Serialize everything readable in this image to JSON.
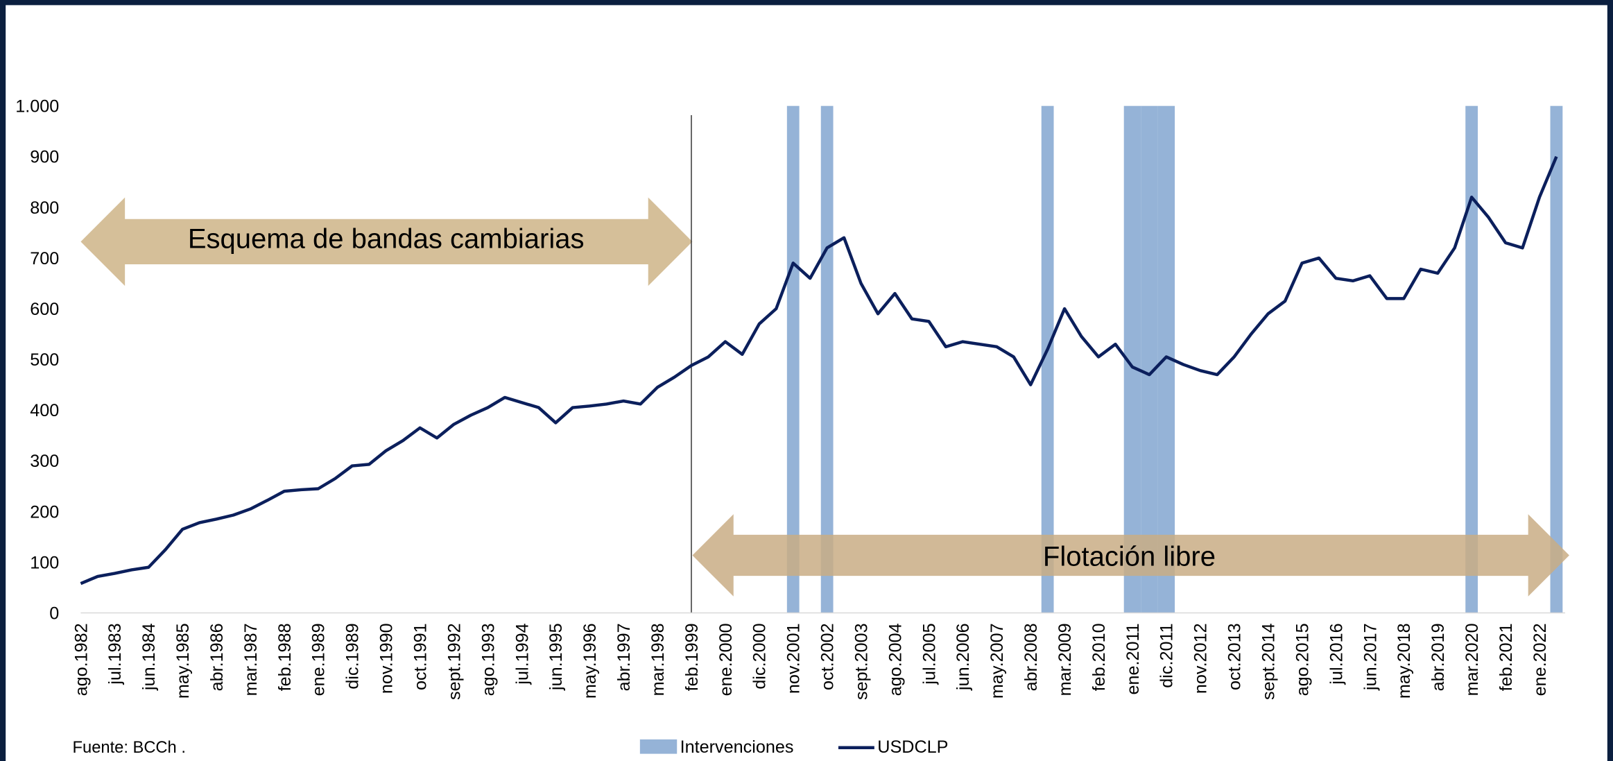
{
  "chart_data": {
    "type": "line",
    "categories": [
      "ago.1982",
      null,
      "jul.1983",
      null,
      "jun.1984",
      null,
      "may.1985",
      null,
      "abr.1986",
      null,
      "mar.1987",
      null,
      "feb.1988",
      null,
      "ene.1989",
      null,
      "dic.1989",
      null,
      "nov.1990",
      null,
      "oct.1991",
      null,
      "sept.1992",
      null,
      "ago.1993",
      null,
      "jul.1994",
      null,
      "jun.1995",
      null,
      "may.1996",
      null,
      "abr.1997",
      null,
      "mar.1998",
      null,
      "feb.1999",
      null,
      "ene.2000",
      null,
      "dic.2000",
      null,
      "nov.2001",
      null,
      "oct.2002",
      null,
      "sept.2003",
      null,
      "ago.2004",
      null,
      "jul.2005",
      null,
      "jun.2006",
      null,
      "may.2007",
      null,
      "abr.2008",
      null,
      "mar.2009",
      null,
      "feb.2010",
      null,
      "ene.2011",
      null,
      "dic.2011",
      null,
      "nov.2012",
      null,
      "oct.2013",
      null,
      "sept.2014",
      null,
      "ago.2015",
      null,
      "jul.2016",
      null,
      "jun.2017",
      null,
      "may.2018",
      null,
      "abr.2019",
      null,
      "mar.2020",
      null,
      "feb.2021",
      null,
      "ene.2022",
      null
    ],
    "series": [
      {
        "name": "Intervenciones",
        "type": "bar",
        "color": "#95b3d7",
        "values": [
          null,
          null,
          null,
          null,
          null,
          null,
          null,
          null,
          null,
          null,
          null,
          null,
          null,
          null,
          null,
          null,
          null,
          null,
          null,
          null,
          null,
          null,
          null,
          null,
          null,
          null,
          null,
          null,
          null,
          null,
          null,
          null,
          null,
          null,
          null,
          null,
          null,
          null,
          null,
          null,
          null,
          null,
          1000,
          null,
          1000,
          null,
          null,
          null,
          null,
          null,
          null,
          null,
          null,
          null,
          null,
          null,
          null,
          1000,
          null,
          null,
          null,
          null,
          1000,
          1000,
          1000,
          null,
          null,
          null,
          null,
          null,
          null,
          null,
          null,
          null,
          null,
          null,
          null,
          null,
          null,
          null,
          null,
          null,
          1000,
          null,
          null,
          null,
          null,
          1000
        ]
      },
      {
        "name": "USDCLP",
        "type": "line",
        "color": "#0b1f5c",
        "values": [
          58,
          72,
          78,
          85,
          90,
          125,
          165,
          178,
          185,
          193,
          205,
          222,
          240,
          243,
          245,
          265,
          290,
          293,
          320,
          340,
          365,
          345,
          372,
          390,
          405,
          425,
          415,
          405,
          375,
          405,
          408,
          412,
          418,
          412,
          445,
          465,
          488,
          505,
          535,
          510,
          570,
          600,
          690,
          660,
          720,
          740,
          650,
          590,
          630,
          580,
          575,
          525,
          535,
          530,
          525,
          505,
          450,
          520,
          600,
          545,
          505,
          530,
          485,
          470,
          505,
          490,
          478,
          470,
          505,
          550,
          590,
          615,
          690,
          700,
          660,
          655,
          665,
          620,
          620,
          678,
          670,
          720,
          820,
          780,
          730,
          720,
          820,
          900
        ]
      }
    ],
    "ylim": [
      0,
      1000
    ],
    "yticks": [
      0,
      100,
      200,
      300,
      400,
      500,
      600,
      700,
      800,
      900,
      {
        "value": 1000,
        "label": "1.000"
      }
    ],
    "annotations": [
      "Esquema de bandas cambiarias",
      "Flotación libre"
    ],
    "source": "Fuente: BCCh ."
  }
}
